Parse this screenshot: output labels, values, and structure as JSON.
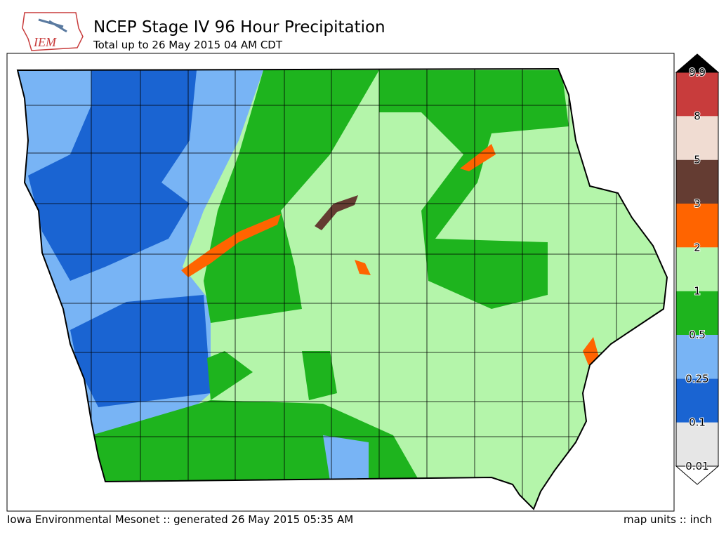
{
  "logo": {
    "text": "IEM"
  },
  "header": {
    "title": "NCEP Stage IV 96 Hour Precipitation",
    "subtitle": "Total up to 26 May 2015 04 AM CDT"
  },
  "legend": {
    "levels": [
      "0.01",
      "0.1",
      "0.25",
      "0.5",
      "1",
      "2",
      "3",
      "5",
      "8",
      "9.9"
    ],
    "colors": [
      "#e6e6e6",
      "#1a64d2",
      "#78b4f5",
      "#1eb41e",
      "#b4f5aa",
      "#ff6400",
      "#643c32",
      "#f0dcd2",
      "#c83c3c"
    ],
    "over_color": "#000000",
    "under_color": "#ffffff"
  },
  "footer": {
    "left": "Iowa Environmental Mesonet :: generated 26 May 2015 05:35 AM",
    "right": "map units :: inch"
  }
}
